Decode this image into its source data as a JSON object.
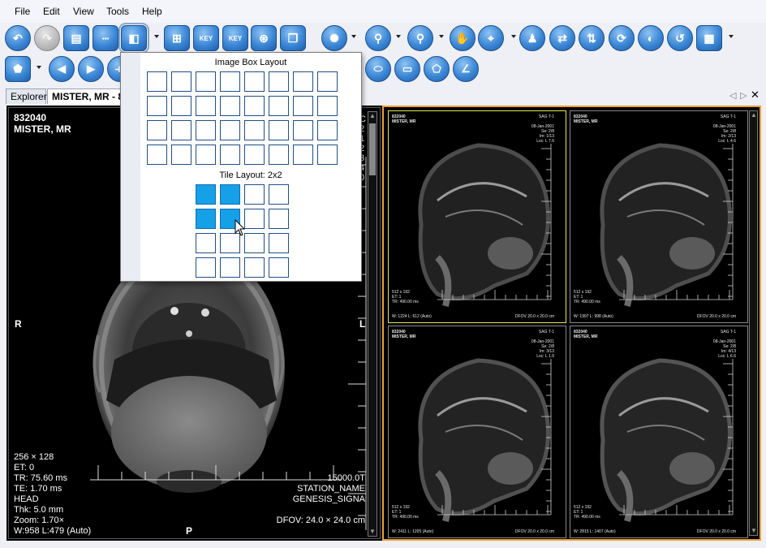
{
  "menu": [
    "File",
    "Edit",
    "View",
    "Tools",
    "Help"
  ],
  "toolbar1": [
    {
      "name": "undo-icon",
      "glyph": "↶"
    },
    {
      "name": "redo-icon",
      "glyph": "↷"
    },
    {
      "name": "clipboard-icon",
      "glyph": "▤"
    },
    {
      "name": "series-strip-icon",
      "glyph": "▪▪▪"
    },
    {
      "name": "layout-icon",
      "glyph": "◧"
    },
    {
      "name": "grid-star-icon",
      "glyph": "⊞"
    },
    {
      "name": "key-image-icon",
      "glyph": "KEY"
    },
    {
      "name": "key-folder-icon",
      "glyph": "KEY"
    },
    {
      "name": "film-reel-icon",
      "glyph": "⊛"
    },
    {
      "name": "stack-windows-icon",
      "glyph": "❐"
    },
    {
      "name": "window-level-icon",
      "glyph": "✺"
    },
    {
      "name": "zoom-icon",
      "glyph": "⚲"
    },
    {
      "name": "zoom-roi-icon",
      "glyph": "⚲"
    },
    {
      "name": "pan-hand-icon",
      "glyph": "✋"
    },
    {
      "name": "probe-icon",
      "glyph": "⌖"
    },
    {
      "name": "person-icon",
      "glyph": "♟"
    },
    {
      "name": "flip-horizontal-icon",
      "glyph": "⇄"
    },
    {
      "name": "flip-vertical-icon",
      "glyph": "⇅"
    },
    {
      "name": "rotate-icon",
      "glyph": "⟳"
    },
    {
      "name": "invert-icon",
      "glyph": "◐"
    },
    {
      "name": "reset-icon",
      "glyph": "↺"
    },
    {
      "name": "cine-icon",
      "glyph": "▦"
    }
  ],
  "toolbar2": [
    {
      "name": "shape-icon",
      "glyph": "⬟"
    },
    {
      "name": "previous-icon",
      "glyph": "◀"
    },
    {
      "name": "next-icon",
      "glyph": "▶"
    },
    {
      "name": "measure-ruler-icon",
      "glyph": "⟛"
    }
  ],
  "toolbar2_right": [
    {
      "name": "ellipse-roi-icon",
      "glyph": "⬭"
    },
    {
      "name": "rectangle-roi-icon",
      "glyph": "▭"
    },
    {
      "name": "polygon-roi-icon",
      "glyph": "⬠"
    },
    {
      "name": "angle-icon",
      "glyph": "∠"
    }
  ],
  "tabs": {
    "explorer": "Explorer",
    "patient": "MISTER, MR - 8"
  },
  "popup": {
    "image_box_title": "Image Box Layout",
    "tile_title": "Tile Layout: 2x2",
    "image_box_cols": 8,
    "image_box_rows": 4,
    "tile_cols": 4,
    "tile_rows": 4,
    "tile_selected": [
      2,
      2
    ]
  },
  "viewer": {
    "patient_id": "832040",
    "patient_name": "MISTER, MR",
    "side_letters": [
      "C",
      "2",
      "1",
      "2",
      "3",
      "4",
      "0"
    ],
    "left_marker": "R",
    "right_marker": "L",
    "bottom_marker": "P",
    "matrix": "256 × 128",
    "et": "ET: 0",
    "tr": "TR: 75.60 ms",
    "te": "TE: 1.70 ms",
    "anatomy": "HEAD",
    "thickness": "Thk: 5.0 mm",
    "zoom": "Zoom: 1.70×",
    "wl": "W:958 L:479 (Auto)",
    "field_strength": "15000.0T",
    "station": "STATION_NAME",
    "device": "GENESIS_SIGNA",
    "dfov": "DFOV: 24.0 × 24.0 cm"
  },
  "tiles": [
    {
      "id": "832040",
      "name": "MISTER, MR",
      "series": "SAG T-1",
      "acq": "08-Jan-2001",
      "ser": "Se: 2/8",
      "im": "Im: 1/13",
      "loc": "Loc: L 7.6",
      "matrix": "512 x 192",
      "et": "ET: 1",
      "tr": "TR: 490.00 ms",
      "wl": "W: 1224 L: 612 (Auto)",
      "dfov": "DFOV 20.0 x 20.0 cm",
      "selected": true
    },
    {
      "id": "832040",
      "name": "MISTER, MR",
      "series": "SAG T-1",
      "acq": "08-Jan-2001",
      "ser": "Se: 2/8",
      "im": "Im: 2/13",
      "loc": "Loc: L 4.6",
      "matrix": "512 x 192",
      "et": "ET: 1",
      "tr": "TR: 490.00 ms",
      "wl": "W: 1997 L: 998 (Auto)",
      "dfov": "DFOV 20.0 x 20.0 cm",
      "selected": false
    },
    {
      "id": "832040",
      "name": "MISTER, MR",
      "series": "SAG T-1",
      "acq": "08-Jan-2001",
      "ser": "Se: 2/8",
      "im": "Im: 3/13",
      "loc": "Loc: L 1.6",
      "matrix": "512 x 192",
      "et": "ET: 1",
      "tr": "TR: 490.00 ms",
      "wl": "W: 2411 L: 1205 (Auto)",
      "dfov": "DFOV 20.0 x 20.0 cm",
      "selected": false
    },
    {
      "id": "832040",
      "name": "MISTER, MR",
      "series": "SAG T-1",
      "acq": "08-Jan-2001",
      "ser": "Se: 2/8",
      "im": "Im: 4/13",
      "loc": "Loc: L 6.6",
      "matrix": "512 x 192",
      "et": "ET: 1",
      "tr": "TR: 490.00 ms",
      "wl": "W: 2815 L: 1407 (Auto)",
      "dfov": "DFOV 20.0 x 20.0 cm",
      "selected": false
    }
  ],
  "colors": {
    "accent": "#15a0e8",
    "active_border": "#f0a030",
    "selected_tile": "#e6e650"
  }
}
